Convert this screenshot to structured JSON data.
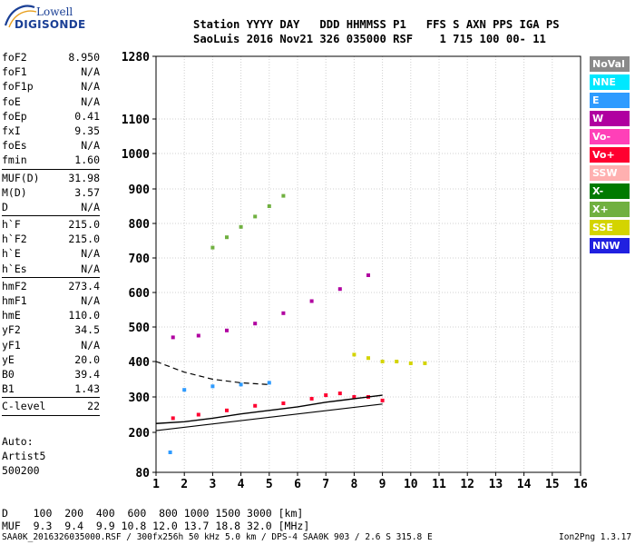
{
  "logo": {
    "line1": "Lowell",
    "line2": "DIGISONDE"
  },
  "header": {
    "line1": "Station YYYY DAY   DDD HHMMSS P1   FFS S AXN PPS IGA PS",
    "line2": "SaoLuis 2016 Nov21 326 035000 RSF    1 715 100 00- 11"
  },
  "parameters": [
    {
      "label": "foF2",
      "value": "8.950"
    },
    {
      "label": "foF1",
      "value": "N/A"
    },
    {
      "label": "foF1p",
      "value": "N/A"
    },
    {
      "label": "foE",
      "value": "N/A"
    },
    {
      "label": "foEp",
      "value": "0.41"
    },
    {
      "label": "fxI",
      "value": "9.35"
    },
    {
      "label": "foEs",
      "value": "N/A"
    },
    {
      "label": "fmin",
      "value": "1.60",
      "sep": true
    },
    {
      "label": "MUF(D)",
      "value": "31.98"
    },
    {
      "label": "M(D)",
      "value": "3.57"
    },
    {
      "label": "D",
      "value": "N/A",
      "sep": true
    },
    {
      "label": "h`F",
      "value": "215.0"
    },
    {
      "label": "h`F2",
      "value": "215.0"
    },
    {
      "label": "h`E",
      "value": "N/A"
    },
    {
      "label": "h`Es",
      "value": "N/A",
      "sep": true
    },
    {
      "label": "hmF2",
      "value": "273.4"
    },
    {
      "label": "hmF1",
      "value": "N/A"
    },
    {
      "label": "hmE",
      "value": "110.0"
    },
    {
      "label": "yF2",
      "value": "34.5"
    },
    {
      "label": "yF1",
      "value": "N/A"
    },
    {
      "label": "yE",
      "value": "20.0"
    },
    {
      "label": "B0",
      "value": "39.4"
    },
    {
      "label": "B1",
      "value": "1.43",
      "sep": true
    },
    {
      "label": "C-level",
      "value": "22",
      "sep": true
    }
  ],
  "auto": {
    "line1": "Auto:",
    "line2": "Artist5",
    "line3": "500200"
  },
  "legend": [
    {
      "label": "NoVal",
      "color": "#8a8a8a"
    },
    {
      "label": "NNE",
      "color": "#00e8ff"
    },
    {
      "label": "E",
      "color": "#2e9bff"
    },
    {
      "label": "W",
      "color": "#b000a0"
    },
    {
      "label": "Vo-",
      "color": "#ff40b8"
    },
    {
      "label": "Vo+",
      "color": "#ff0030"
    },
    {
      "label": "SSW",
      "color": "#ffb0b0"
    },
    {
      "label": "X-",
      "color": "#007a00"
    },
    {
      "label": "X+",
      "color": "#70b040"
    },
    {
      "label": "SSE",
      "color": "#d4d400"
    },
    {
      "label": "NNW",
      "color": "#2020e0"
    }
  ],
  "dmuf": {
    "d_line": "D    100  200  400  600  800 1000 1500 3000 [km]",
    "muf_line": "MUF  9.3  9.4  9.9 10.8 12.0 13.7 18.8 32.0 [MHz]"
  },
  "footer": "SAA0K_2016326035000.RSF / 300fx256h 50 kHz 5.0 km / DPS-4 SAA0K 903 / 2.6 S 315.8 E",
  "version": "Ion2Png 1.3.17",
  "chart_data": {
    "type": "scatter",
    "title": "",
    "xlabel": "",
    "ylabel": "",
    "xlim": [
      1,
      16
    ],
    "ylim": [
      80,
      1280
    ],
    "x_ticks": [
      1,
      2,
      3,
      4,
      5,
      6,
      7,
      8,
      9,
      10,
      11,
      12,
      13,
      14,
      15,
      16
    ],
    "y_tick_labels": [
      80,
      200,
      300,
      400,
      500,
      600,
      700,
      800,
      900,
      1000,
      1100,
      1280
    ],
    "grid": true,
    "y_scale": "nonlinear",
    "series": [
      {
        "name": "Vo+",
        "color": "#ff0030",
        "x": [
          1.6,
          2.5,
          3.5,
          4.5,
          5.5,
          6.5,
          7.0,
          7.5,
          8.0,
          8.5,
          9.0
        ],
        "y": [
          240,
          250,
          262,
          275,
          282,
          295,
          305,
          310,
          300,
          300,
          290
        ]
      },
      {
        "name": "W",
        "color": "#b000a0",
        "x": [
          1.6,
          2.5,
          3.5,
          4.5,
          5.5,
          6.5,
          7.5,
          8.5
        ],
        "y": [
          470,
          475,
          490,
          510,
          540,
          575,
          610,
          650
        ]
      },
      {
        "name": "X+",
        "color": "#70b040",
        "x": [
          3.0,
          3.5,
          4.0,
          4.5,
          5.0,
          5.5
        ],
        "y": [
          730,
          760,
          790,
          820,
          850,
          880
        ]
      },
      {
        "name": "SSE",
        "color": "#d4d400",
        "x": [
          8.0,
          8.5,
          9.0,
          9.5,
          10.0,
          10.5
        ],
        "y": [
          420,
          410,
          400,
          400,
          395,
          395
        ]
      },
      {
        "name": "E",
        "color": "#2e9bff",
        "x": [
          1.5,
          2.0,
          3.0,
          4.0,
          5.0
        ],
        "y": [
          140,
          320,
          330,
          335,
          340
        ]
      }
    ],
    "annotations": {
      "solid_curve": {
        "x": [
          1,
          2,
          3,
          4,
          5,
          6,
          7,
          8,
          9
        ],
        "y": [
          225,
          230,
          240,
          252,
          262,
          272,
          285,
          295,
          305
        ]
      },
      "dashed_curve": {
        "x": [
          1,
          2,
          3,
          4,
          5
        ],
        "y": [
          400,
          370,
          350,
          340,
          335
        ]
      },
      "lower_line": {
        "x": [
          1,
          9
        ],
        "y": [
          205,
          280
        ]
      }
    }
  }
}
